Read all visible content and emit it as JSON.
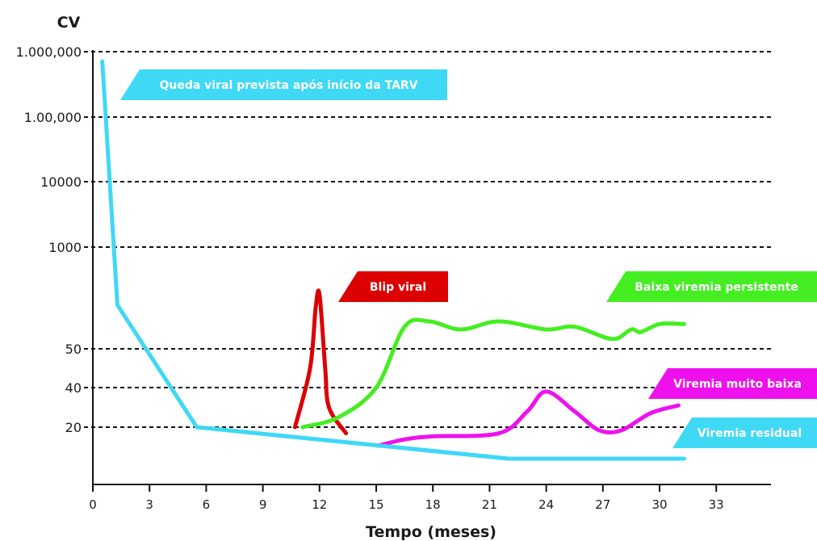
{
  "chart_data": {
    "type": "line",
    "ylabel": "CV",
    "xlabel": "Tempo (meses)",
    "x_ticks": [
      0,
      3,
      6,
      9,
      12,
      15,
      18,
      21,
      24,
      27,
      30,
      33
    ],
    "xlim": [
      0,
      35
    ],
    "y_scale": "categorical (non-linear)",
    "y_tick_labels": [
      "1.000,000",
      "1.00,000",
      "10000",
      "1000",
      "50",
      "40",
      "20"
    ],
    "grid": "dashed horizontal lines at y ticks",
    "series": [
      {
        "name": "Queda viral prevista após início da TARV",
        "color": "#3fd8f5",
        "points": [
          [
            0.5,
            1000000
          ],
          [
            1.3,
            200
          ],
          [
            5.5,
            20
          ],
          [
            22,
            10
          ],
          [
            31.3,
            10
          ]
        ]
      },
      {
        "name": "Blip viral",
        "color": "#dd0000",
        "points": [
          [
            10.7,
            20
          ],
          [
            11.5,
            45
          ],
          [
            11.8,
            190
          ],
          [
            12.0,
            250
          ],
          [
            12.3,
            45
          ],
          [
            12.5,
            30
          ],
          [
            13.4,
            18
          ]
        ]
      },
      {
        "name": "Baixa viremia persistente",
        "color": "#44ee22",
        "points": [
          [
            11.1,
            20
          ],
          [
            13.0,
            25
          ],
          [
            15.0,
            40
          ],
          [
            16.5,
            110
          ],
          [
            17.8,
            120
          ],
          [
            19.5,
            105
          ],
          [
            21.5,
            120
          ],
          [
            24.0,
            105
          ],
          [
            25.5,
            110
          ],
          [
            27.5,
            85
          ],
          [
            28.5,
            105
          ],
          [
            29.0,
            100
          ],
          [
            30.0,
            115
          ],
          [
            31.3,
            115
          ]
        ]
      },
      {
        "name": "Viremia muito baixa",
        "color": "#ee11ee",
        "points": [
          [
            15.1,
            14
          ],
          [
            16.5,
            16
          ],
          [
            18.0,
            17
          ],
          [
            21.5,
            18
          ],
          [
            23.0,
            28
          ],
          [
            24.0,
            38
          ],
          [
            25.5,
            28
          ],
          [
            26.8,
            19
          ],
          [
            28.0,
            19
          ],
          [
            29.5,
            27
          ],
          [
            31.0,
            31
          ]
        ]
      },
      {
        "name": "Viremia residual",
        "color": "#3fd8f5",
        "points": [
          [
            5.5,
            20
          ],
          [
            22,
            10
          ],
          [
            31.3,
            10
          ]
        ]
      }
    ],
    "annotations": [
      {
        "text": "Queda viral prevista após início da TARV",
        "color": "#3fd8f5"
      },
      {
        "text": "Blip viral",
        "color": "#dd0000"
      },
      {
        "text": "Baixa viremia persistente",
        "color": "#44ee22"
      },
      {
        "text": "Viremia muito baixa",
        "color": "#ee11ee"
      },
      {
        "text": "Viremia residual",
        "color": "#3fd8f5"
      }
    ]
  }
}
